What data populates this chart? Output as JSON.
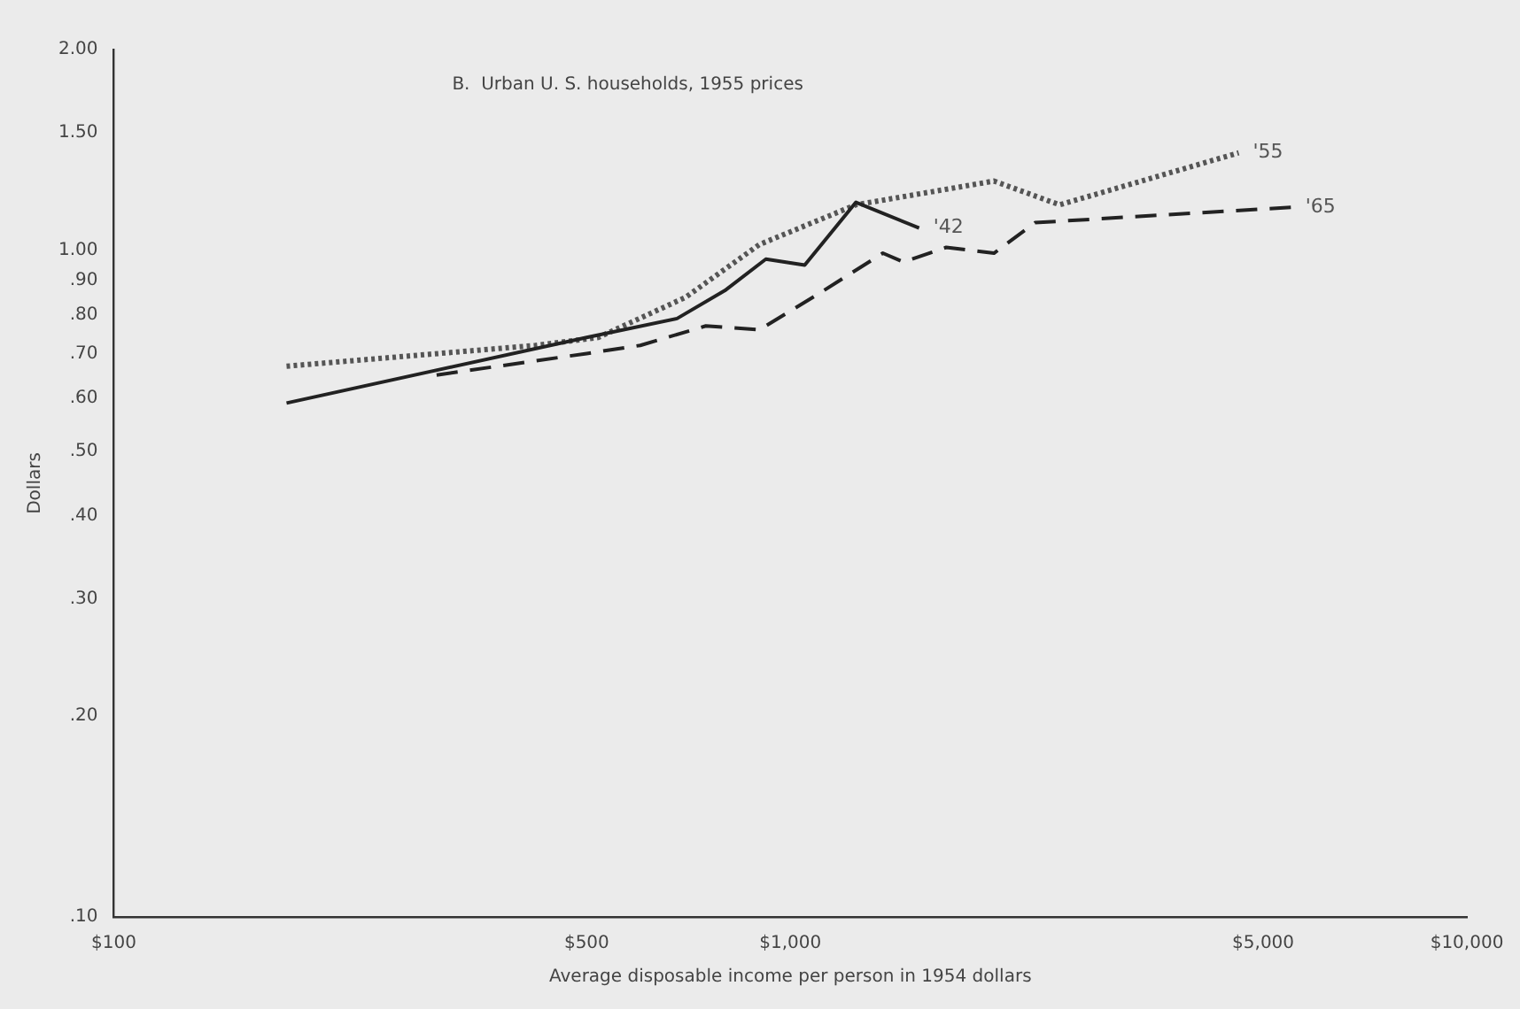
{
  "chart_data": {
    "type": "line",
    "title": "B.  Urban U. S. households, 1955 prices",
    "xlabel": "Average disposable income per person in 1954 dollars",
    "ylabel": "Dollars",
    "log": "xy",
    "grid": false,
    "legend": false,
    "marker": "none",
    "xlim": [
      100,
      10000
    ],
    "xticks": [
      {
        "value": 100,
        "label": "$100"
      },
      {
        "value": 500,
        "label": "$500"
      },
      {
        "value": 1000,
        "label": "$1,000"
      },
      {
        "value": 5000,
        "label": "$5,000"
      },
      {
        "value": 10000,
        "label": "$10,000"
      }
    ],
    "ylim": [
      0.1,
      2
    ],
    "yticks": [
      {
        "value": 0.1,
        "label": ".10"
      },
      {
        "value": 0.2,
        "label": ".20"
      },
      {
        "value": 0.3,
        "label": ".30"
      },
      {
        "value": 0.4,
        "label": ".40"
      },
      {
        "value": 0.5,
        "label": ".50"
      },
      {
        "value": 0.6,
        "label": ".60"
      },
      {
        "value": 0.7,
        "label": ".70"
      },
      {
        "value": 0.8,
        "label": ".80"
      },
      {
        "value": 0.9,
        "label": ".90"
      },
      {
        "value": 1,
        "label": "1.00"
      },
      {
        "value": 1.5,
        "label": "1.50"
      },
      {
        "value": 2,
        "label": "2.00"
      }
    ],
    "series": [
      {
        "name": "'42",
        "color": "#222222",
        "line_style": "solid",
        "x": [
          180,
          500,
          680,
          800,
          920,
          1050,
          1250,
          1550
        ],
        "values": [
          0.59,
          0.74,
          0.79,
          0.87,
          0.97,
          0.95,
          1.18,
          1.08
        ]
      },
      {
        "name": "'55",
        "color": "#555555",
        "line_style": "dotted",
        "x": [
          180,
          420,
          520,
          700,
          900,
          1250,
          2000,
          2500,
          4600
        ],
        "values": [
          0.67,
          0.72,
          0.74,
          0.85,
          1.02,
          1.17,
          1.27,
          1.17,
          1.4
        ]
      },
      {
        "name": "'65",
        "color": "#222222",
        "line_style": "dashed",
        "x": [
          300,
          500,
          600,
          750,
          900,
          1100,
          1370,
          1470,
          1700,
          2000,
          2300,
          5500
        ],
        "values": [
          0.65,
          0.7,
          0.72,
          0.77,
          0.76,
          0.86,
          0.99,
          0.96,
          1.01,
          0.99,
          1.1,
          1.16
        ]
      }
    ]
  }
}
